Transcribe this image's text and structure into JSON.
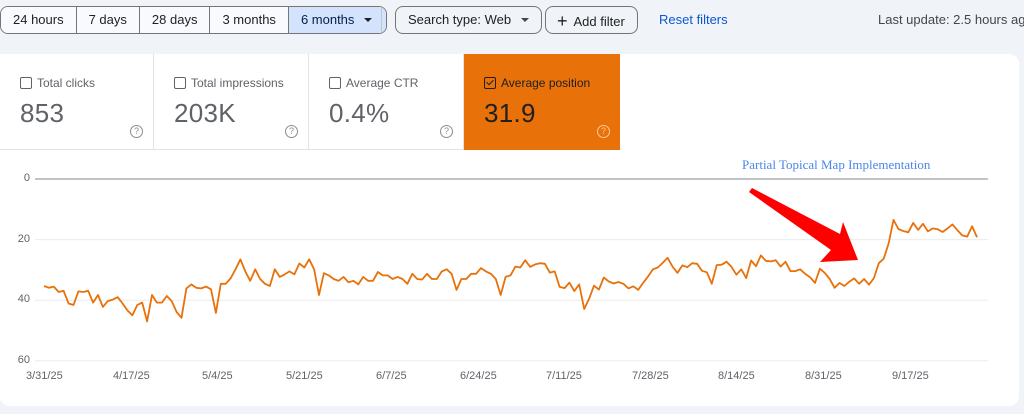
{
  "toolbar": {
    "date_ranges": [
      {
        "label": "24 hours",
        "active": false
      },
      {
        "label": "7 days",
        "active": false
      },
      {
        "label": "28 days",
        "active": false
      },
      {
        "label": "3 months",
        "active": false
      },
      {
        "label": "6 months",
        "active": true
      }
    ],
    "search_type_label": "Search type: Web",
    "add_filter_label": "Add filter",
    "add_filter_icon": "plus-icon",
    "reset_filters_label": "Reset filters",
    "last_update": "Last update: 2.5 hours ag"
  },
  "metrics": [
    {
      "label": "Total clicks",
      "value": "853",
      "checked": false
    },
    {
      "label": "Total impressions",
      "value": "203K",
      "checked": false
    },
    {
      "label": "Average CTR",
      "value": "0.4%",
      "checked": false
    },
    {
      "label": "Average position",
      "value": "31.9",
      "checked": true
    }
  ],
  "help_glyph": "?",
  "colors": {
    "accent_orange": "#e8710a",
    "line": "#e8710a",
    "link_blue": "#0b57d0",
    "annotation_blue": "#4a86e8",
    "arrow_red": "#ff0000",
    "page_bg": "#f0f4f9"
  },
  "chart": {
    "annotation": "Partial Topical Map Implementation",
    "y_ticks": [
      "0",
      "20",
      "40",
      "60"
    ],
    "x_ticks": [
      "3/31/25",
      "4/17/25",
      "5/4/25",
      "5/21/25",
      "6/7/25",
      "6/24/25",
      "7/11/25",
      "7/28/25",
      "8/14/25",
      "8/31/25",
      "9/17/25"
    ]
  },
  "chart_data": {
    "type": "line",
    "title": "",
    "annotation": "Partial Topical Map Implementation",
    "xlabel": "",
    "ylabel": "Average position",
    "ylim": [
      60,
      0
    ],
    "y_inverted": true,
    "y_ticks": [
      0,
      20,
      40,
      60
    ],
    "grid": true,
    "legend": "none",
    "x_ticks": [
      "3/31/25",
      "4/17/25",
      "5/4/25",
      "5/21/25",
      "6/7/25",
      "6/24/25",
      "7/11/25",
      "7/28/25",
      "8/14/25",
      "8/31/25",
      "9/17/25"
    ],
    "series": [
      {
        "name": "Average position",
        "start_date": "3/31/25",
        "interval": "daily",
        "values": [
          35.3,
          35.9,
          35.5,
          37.3,
          36.9,
          41.1,
          41.6,
          37.1,
          37.3,
          36.9,
          40.8,
          38.3,
          42.2,
          40.3,
          39.8,
          39.0,
          41.1,
          43.4,
          45.0,
          41.6,
          40.8,
          47.0,
          38.3,
          40.8,
          40.8,
          38.6,
          40.3,
          43.9,
          45.8,
          36.1,
          34.8,
          35.9,
          36.1,
          35.5,
          36.4,
          44.2,
          34.6,
          34.6,
          32.8,
          29.8,
          26.5,
          30.5,
          33.6,
          29.8,
          33.0,
          34.6,
          35.3,
          29.8,
          32.3,
          31.5,
          30.5,
          31.5,
          27.9,
          29.2,
          26.5,
          29.8,
          38.3,
          31.1,
          31.8,
          33.0,
          33.6,
          32.3,
          34.1,
          33.6,
          34.8,
          32.3,
          33.6,
          33.6,
          30.7,
          31.8,
          31.8,
          33.0,
          32.3,
          33.0,
          34.6,
          31.3,
          33.0,
          33.2,
          31.3,
          33.0,
          33.0,
          30.5,
          29.8,
          31.3,
          36.6,
          33.0,
          33.0,
          31.3,
          31.3,
          29.4,
          30.5,
          31.3,
          33.0,
          38.3,
          32.3,
          31.8,
          28.9,
          29.2,
          26.8,
          29.0,
          28.2,
          27.8,
          28.0,
          30.9,
          30.5,
          35.6,
          36.0,
          34.2,
          37.0,
          34.8,
          42.9,
          39.5,
          35.2,
          36.5,
          32.5,
          33.8,
          34.5,
          34.0,
          34.6,
          36.1,
          35.4,
          36.6,
          34.3,
          32.2,
          29.8,
          29.2,
          27.7,
          26.0,
          28.9,
          31.0,
          28.5,
          29.1,
          27.8,
          28.0,
          30.3,
          30.8,
          34.6,
          28.4,
          28.3,
          27.3,
          29.0,
          31.6,
          29.8,
          32.7,
          26.9,
          28.8,
          25.2,
          27.0,
          27.2,
          26.8,
          28.9,
          27.3,
          30.4,
          30.4,
          29.8,
          31.3,
          32.4,
          34.3,
          29.6,
          31.0,
          33.0,
          35.9,
          34.3,
          35.3,
          33.9,
          32.8,
          34.6,
          33.0,
          34.9,
          32.7,
          27.8,
          26.3,
          21.3,
          13.5,
          16.5,
          17.2,
          17.6,
          14.5,
          16.8,
          14.8,
          17.3,
          16.3,
          16.6,
          17.5,
          16.3,
          15.0,
          16.9,
          18.6,
          19.0,
          15.6,
          19.2
        ]
      }
    ]
  }
}
